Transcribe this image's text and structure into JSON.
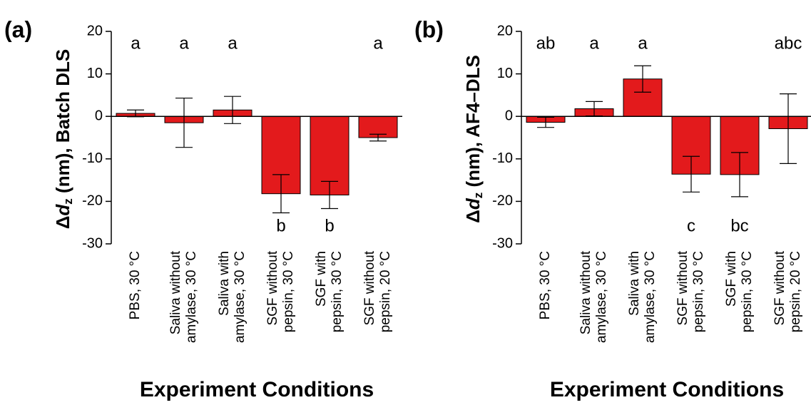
{
  "chart_data": [
    {
      "type": "bar",
      "panel_label": "(a)",
      "y_label": [
        "Δ",
        "d",
        "z",
        " (nm), Batch DLS"
      ],
      "x_label": "Experiment Conditions",
      "categories": [
        [
          "PBS, 30 °C"
        ],
        [
          "Saliva without",
          "amylase, 30 °C"
        ],
        [
          "Saliva with",
          "amylase, 30 °C"
        ],
        [
          "SGF without",
          "pepsin, 30 °C"
        ],
        [
          "SGF with",
          "pepsin, 30 °C"
        ],
        [
          "SGF without",
          "pepsin, 20 °C"
        ]
      ],
      "values": [
        0.7,
        -1.5,
        1.5,
        -18.2,
        -18.5,
        -5.0
      ],
      "errors": [
        0.8,
        5.8,
        3.2,
        4.5,
        3.2,
        0.8
      ],
      "letters": [
        "a",
        "a",
        "a",
        "b",
        "b",
        "a"
      ],
      "color": "#e31a1c",
      "ylim": [
        -30,
        20
      ],
      "yticks": [
        -30,
        -20,
        -10,
        0,
        10,
        20
      ]
    },
    {
      "type": "bar",
      "panel_label": "(b)",
      "y_label": [
        "Δ",
        "d",
        "z",
        " (nm), AF4–DLS"
      ],
      "x_label": "Experiment Conditions",
      "categories": [
        [
          "PBS, 30 °C"
        ],
        [
          "Saliva without",
          "amylase, 30 °C"
        ],
        [
          "Saliva with",
          "amylase, 30 °C"
        ],
        [
          "SGF without",
          "pepsin, 30 °C"
        ],
        [
          "SGF with",
          "pepsin, 30 °C"
        ],
        [
          "SGF without",
          "pepsin, 20 °C"
        ]
      ],
      "values": [
        -1.4,
        1.8,
        8.8,
        -13.6,
        -13.7,
        -2.9
      ],
      "errors": [
        1.2,
        1.7,
        3.1,
        4.2,
        5.2,
        8.2
      ],
      "letters": [
        "ab",
        "a",
        "a",
        "c",
        "bc",
        "abc"
      ],
      "color": "#e31a1c",
      "ylim": [
        -30,
        20
      ],
      "yticks": [
        -30,
        -20,
        -10,
        0,
        10,
        20
      ]
    }
  ]
}
